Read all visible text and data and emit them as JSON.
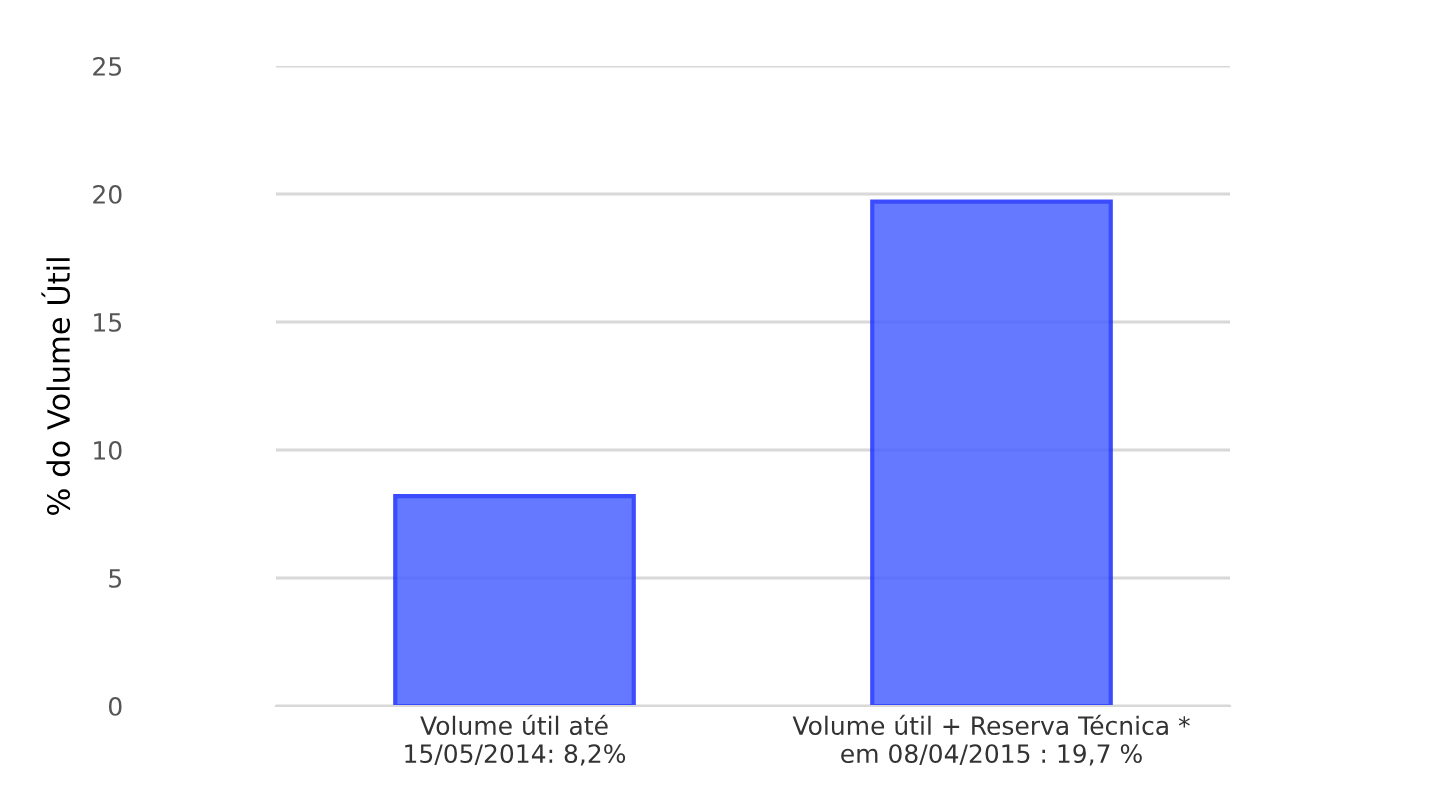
{
  "chart_data": {
    "type": "bar",
    "categories": [
      "Volume útil até\n15/05/2014: 8,2%",
      "Volume útil + Reserva Técnica *\nem 08/04/2015 : 19,7 %"
    ],
    "values": [
      8.2,
      19.7
    ],
    "color": "#4a62ff",
    "ylabel": "% do Volume Útil",
    "ylim": [
      0,
      25
    ],
    "yticks": [
      0,
      5,
      10,
      15,
      20,
      25
    ],
    "grid": "y"
  }
}
